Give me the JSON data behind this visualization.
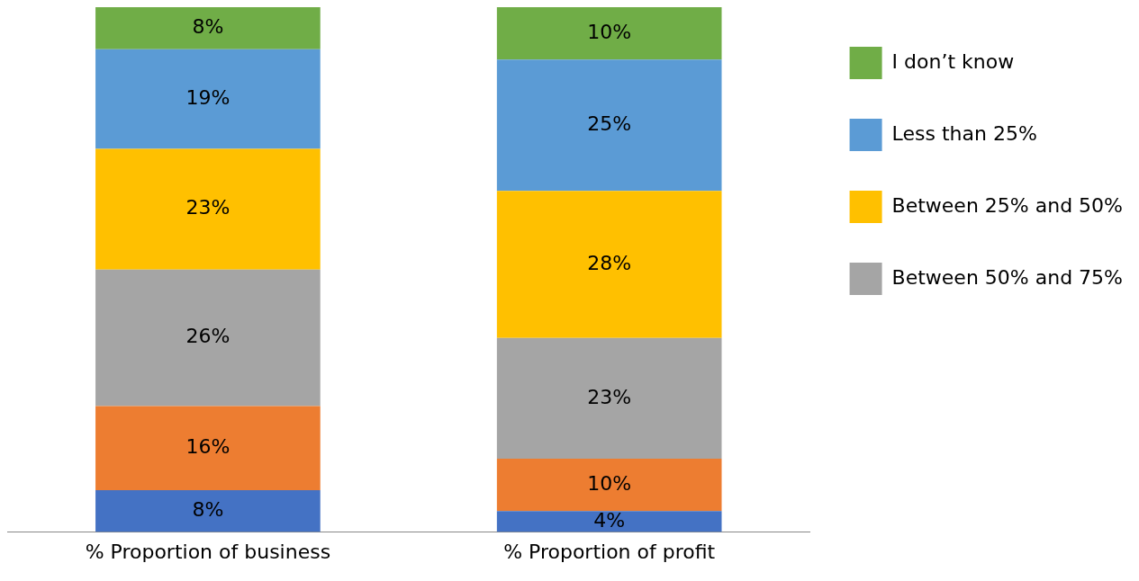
{
  "chart_data": {
    "type": "bar",
    "stacked": true,
    "categories": [
      "% Proportion of business",
      "% Proportion of profit"
    ],
    "series": [
      {
        "color": "#4472c4",
        "values": [
          8,
          4
        ],
        "value_labels": [
          "8%",
          "4%"
        ]
      },
      {
        "color": "#ed7d31",
        "values": [
          16,
          10
        ],
        "value_labels": [
          "16%",
          "10%"
        ]
      },
      {
        "name": "Between 50% and 75%",
        "color": "#a5a5a5",
        "values": [
          26,
          23
        ],
        "value_labels": [
          "26%",
          "23%"
        ]
      },
      {
        "name": "Between 25% and 50%",
        "color": "#ffc000",
        "values": [
          23,
          28
        ],
        "value_labels": [
          "23%",
          "28%"
        ]
      },
      {
        "name": "Less than 25%",
        "color": "#5b9bd5",
        "values": [
          19,
          25
        ],
        "value_labels": [
          "19%",
          "25%"
        ]
      },
      {
        "name": "I don’t know",
        "color": "#70ad47",
        "values": [
          8,
          10
        ],
        "value_labels": [
          "8%",
          "10%"
        ]
      }
    ],
    "grid": false,
    "legend": "top right",
    "tick_labels": "x"
  }
}
